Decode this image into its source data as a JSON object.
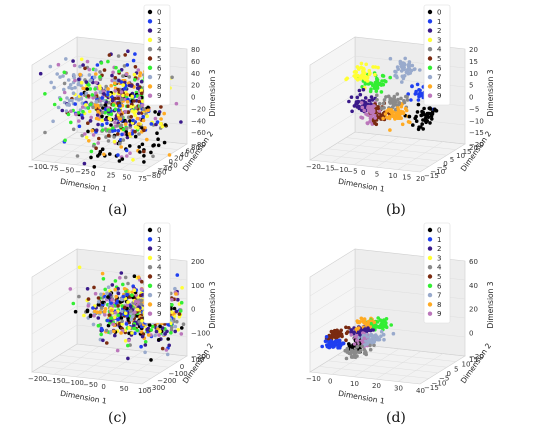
{
  "legend_classes": [
    "0",
    "1",
    "2",
    "3",
    "4",
    "5",
    "6",
    "7",
    "8",
    "9"
  ],
  "class_colors": [
    "#000000",
    "#1f3ff0",
    "#3a1a8a",
    "#ffff33",
    "#8a8a8a",
    "#7a2a10",
    "#33ee33",
    "#99aacc",
    "#ffaa22",
    "#bb77bb"
  ],
  "chart_data": [
    {
      "type": "scatter",
      "panel_label": "(a)",
      "xlabel": "Dimension 1",
      "ylabel": "Dimension 2",
      "zlabel": "Dimension 3",
      "x_ticks": [
        "−100",
        "−75",
        "−50",
        "−25",
        "0",
        "25",
        "50",
        "75"
      ],
      "y_ticks": [
        "−80",
        "−60",
        "−40",
        "−20",
        "0",
        "20",
        "40",
        "60",
        "80"
      ],
      "z_ticks": [
        "−80",
        "−60",
        "−40",
        "−20",
        "0",
        "20",
        "40",
        "60",
        "80"
      ],
      "xlim": [
        -100,
        75
      ],
      "ylim": [
        -80,
        80
      ],
      "zlim": [
        -80,
        80
      ],
      "grid": true,
      "legend_position": "top-right",
      "series": [
        {
          "name": "0",
          "centroid": [
            10,
            0,
            -40
          ],
          "spread": 35
        },
        {
          "name": "1",
          "centroid": [
            5,
            0,
            0
          ],
          "spread": 35
        },
        {
          "name": "2",
          "centroid": [
            0,
            5,
            5
          ],
          "spread": 35
        },
        {
          "name": "3",
          "centroid": [
            5,
            0,
            0
          ],
          "spread": 35
        },
        {
          "name": "4",
          "centroid": [
            0,
            0,
            0
          ],
          "spread": 35
        },
        {
          "name": "5",
          "centroid": [
            0,
            0,
            0
          ],
          "spread": 35
        },
        {
          "name": "6",
          "centroid": [
            -10,
            0,
            10
          ],
          "spread": 35
        },
        {
          "name": "7",
          "centroid": [
            -60,
            0,
            10
          ],
          "spread": 25
        },
        {
          "name": "8",
          "centroid": [
            10,
            0,
            0
          ],
          "spread": 35
        },
        {
          "name": "9",
          "centroid": [
            0,
            0,
            0
          ],
          "spread": 35
        }
      ]
    },
    {
      "type": "scatter",
      "panel_label": "(b)",
      "xlabel": "Dimension 1",
      "ylabel": "Dimension 2",
      "zlabel": "Dimension 3",
      "x_ticks": [
        "−20",
        "−15",
        "−10",
        "−5",
        "0",
        "5",
        "10",
        "15",
        "20"
      ],
      "y_ticks": [
        "−15",
        "−10",
        "−5",
        "0",
        "5",
        "10",
        "15",
        "20"
      ],
      "z_ticks": [
        "−20",
        "−15",
        "−10",
        "−5",
        "0",
        "5",
        "10",
        "15",
        "20"
      ],
      "xlim": [
        -20,
        20
      ],
      "ylim": [
        -15,
        20
      ],
      "zlim": [
        -20,
        20
      ],
      "grid": true,
      "legend_position": "top-right",
      "series": [
        {
          "name": "0",
          "centroid": [
            15,
            0,
            -2
          ],
          "spread": 2
        },
        {
          "name": "1",
          "centroid": [
            12,
            5,
            6
          ],
          "spread": 2
        },
        {
          "name": "2",
          "centroid": [
            -8,
            0,
            0
          ],
          "spread": 2
        },
        {
          "name": "3",
          "centroid": [
            -10,
            5,
            10
          ],
          "spread": 2
        },
        {
          "name": "4",
          "centroid": [
            3,
            0,
            2
          ],
          "spread": 2
        },
        {
          "name": "5",
          "centroid": [
            -2,
            0,
            -3
          ],
          "spread": 2
        },
        {
          "name": "6",
          "centroid": [
            -8,
            10,
            5
          ],
          "spread": 2
        },
        {
          "name": "7",
          "centroid": [
            0,
            15,
            10
          ],
          "spread": 2
        },
        {
          "name": "8",
          "centroid": [
            6,
            -2,
            -2
          ],
          "spread": 2
        },
        {
          "name": "9",
          "centroid": [
            -4,
            -2,
            -2
          ],
          "spread": 2
        }
      ]
    },
    {
      "type": "scatter",
      "panel_label": "(c)",
      "xlabel": "Dimension 1",
      "ylabel": "Dimension 2",
      "zlabel": "Dimension 3",
      "x_ticks": [
        "−200",
        "−150",
        "−100",
        "−50",
        "0",
        "50",
        "100"
      ],
      "y_ticks": [
        "−300",
        "−200",
        "−100",
        "0",
        "100"
      ],
      "z_ticks": [
        "−200",
        "−100",
        "0",
        "100",
        "200"
      ],
      "xlim": [
        -200,
        100
      ],
      "ylim": [
        -300,
        100
      ],
      "zlim": [
        -200,
        200
      ],
      "grid": true,
      "legend_position": "top-right",
      "series": [
        {
          "name": "0",
          "centroid": [
            0,
            0,
            0
          ],
          "spread": 60
        },
        {
          "name": "1",
          "centroid": [
            0,
            0,
            0
          ],
          "spread": 60
        },
        {
          "name": "2",
          "centroid": [
            0,
            0,
            0
          ],
          "spread": 60
        },
        {
          "name": "3",
          "centroid": [
            0,
            0,
            0
          ],
          "spread": 60
        },
        {
          "name": "4",
          "centroid": [
            0,
            0,
            0
          ],
          "spread": 60
        },
        {
          "name": "5",
          "centroid": [
            0,
            0,
            0
          ],
          "spread": 60
        },
        {
          "name": "6",
          "centroid": [
            0,
            0,
            0
          ],
          "spread": 60
        },
        {
          "name": "7",
          "centroid": [
            -20,
            0,
            0
          ],
          "spread": 60
        },
        {
          "name": "8",
          "centroid": [
            0,
            0,
            0
          ],
          "spread": 60
        },
        {
          "name": "9",
          "centroid": [
            0,
            0,
            0
          ],
          "spread": 60
        }
      ]
    },
    {
      "type": "scatter",
      "panel_label": "(d)",
      "xlabel": "Dimension 1",
      "ylabel": "Dimension 2",
      "zlabel": "Dimension 3",
      "x_ticks": [
        "−10",
        "0",
        "10",
        "20",
        "30",
        "40"
      ],
      "y_ticks": [
        "−15",
        "−10",
        "−5",
        "0",
        "5",
        "10",
        "15"
      ],
      "z_ticks": [
        "−20",
        "0",
        "20",
        "40",
        "60"
      ],
      "xlim": [
        -10,
        40
      ],
      "ylim": [
        -15,
        15
      ],
      "zlim": [
        -20,
        60
      ],
      "grid": true,
      "legend_position": "top-right",
      "series": [
        {
          "name": "0",
          "centroid": [
            2,
            0,
            -5
          ],
          "spread": 2
        },
        {
          "name": "1",
          "centroid": [
            -6,
            -6,
            -3
          ],
          "spread": 2
        },
        {
          "name": "2",
          "centroid": [
            0,
            5,
            0
          ],
          "spread": 2
        },
        {
          "name": "3",
          "centroid": [
            35,
            5,
            25
          ],
          "spread": 1
        },
        {
          "name": "4",
          "centroid": [
            4,
            -4,
            -8
          ],
          "spread": 2
        },
        {
          "name": "5",
          "centroid": [
            -8,
            0,
            0
          ],
          "spread": 2
        },
        {
          "name": "6",
          "centroid": [
            6,
            8,
            5
          ],
          "spread": 2
        },
        {
          "name": "7",
          "centroid": [
            8,
            0,
            0
          ],
          "spread": 2
        },
        {
          "name": "8",
          "centroid": [
            0,
            8,
            5
          ],
          "spread": 2
        },
        {
          "name": "9",
          "centroid": [
            4,
            0,
            -2
          ],
          "spread": 2
        }
      ]
    }
  ]
}
